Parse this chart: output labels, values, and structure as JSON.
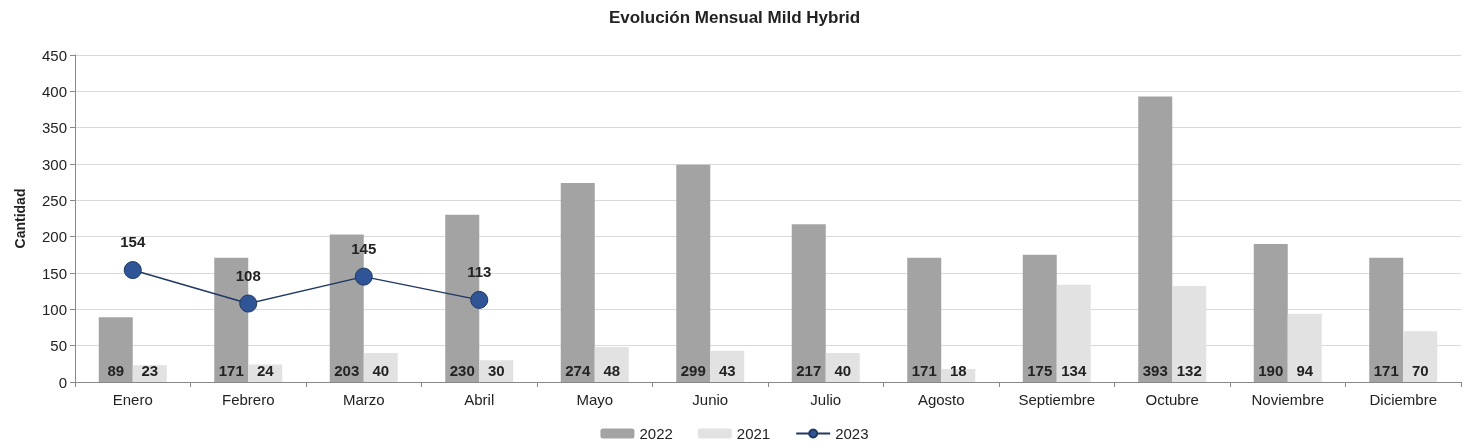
{
  "chart_data": {
    "type": "bar",
    "title": "Evolución Mensual Mild Hybrid",
    "ylabel": "Cantidad",
    "categories": [
      "Enero",
      "Febrero",
      "Marzo",
      "Abril",
      "Mayo",
      "Junio",
      "Julio",
      "Agosto",
      "Septiembre",
      "Octubre",
      "Noviembre",
      "Diciembre"
    ],
    "series": [
      {
        "name": "2022",
        "color": "#a3a3a3",
        "values": [
          89,
          171,
          203,
          230,
          274,
          299,
          217,
          171,
          175,
          393,
          190,
          171
        ]
      },
      {
        "name": "2021",
        "color": "#e2e2e2",
        "values": [
          23,
          24,
          40,
          30,
          48,
          43,
          40,
          18,
          134,
          132,
          94,
          70
        ]
      },
      {
        "name": "2023",
        "type": "line",
        "color": "#2f5597",
        "values": [
          154,
          108,
          145,
          113,
          null,
          null,
          null,
          null,
          null,
          null,
          null,
          null
        ]
      }
    ],
    "ylim": [
      0,
      450
    ],
    "yticks": [
      0,
      50,
      100,
      150,
      200,
      250,
      300,
      350,
      400,
      450
    ],
    "grid": "y",
    "legend": "bottom",
    "marker": "circle",
    "line_style": "solid",
    "data_labels": true
  }
}
